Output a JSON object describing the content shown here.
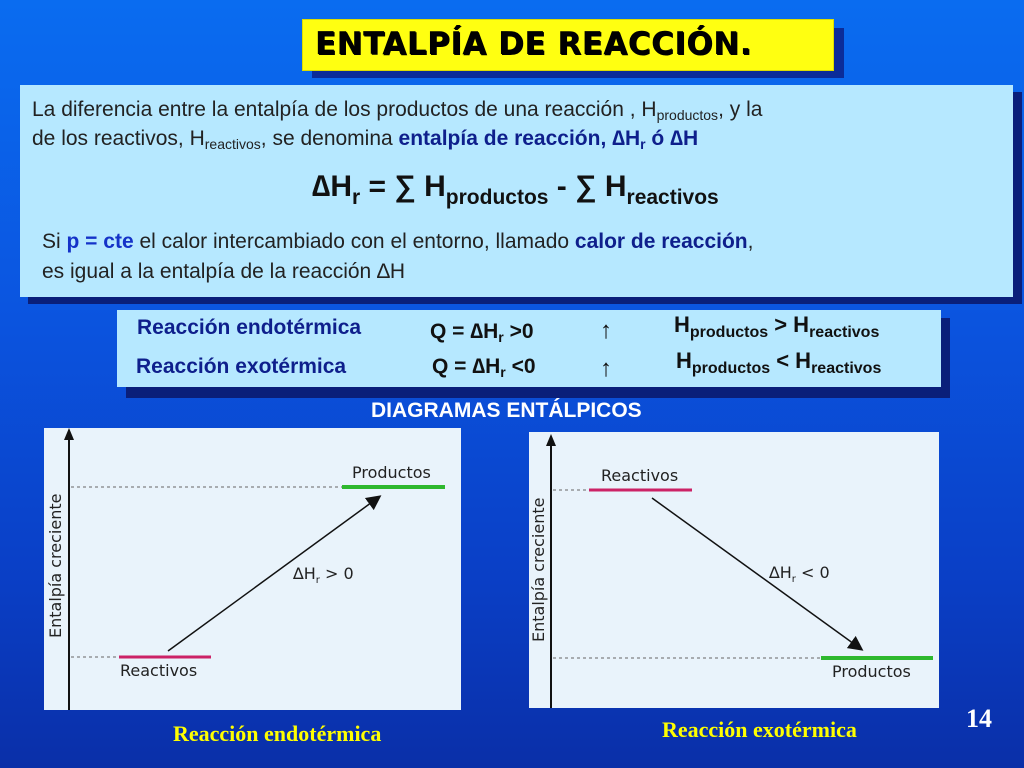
{
  "title": "ENTALPÍA DE REACCIÓN.",
  "definition": {
    "line1_a": "La diferencia entre la entalpía de los productos de una reacción , H",
    "line1_sub": "productos",
    "line1_b": ", y la",
    "line2_a": "de los reactivos, H",
    "line2_sub": "reactivos",
    "line2_b": ", se denomina ",
    "line2_bold": "entalpía de reacción, ∆H",
    "line2_bold_sub": "r",
    "line2_bold_end": " ó ∆H",
    "formula": {
      "lhs": "∆H",
      "lhs_sub": "r",
      "eq": " = ∑ H",
      "sub1": "productos",
      "mid": " - ∑ H",
      "sub2": "reactivos"
    },
    "line3_a": "Si ",
    "line3_p": "p = cte",
    "line3_b": " el calor intercambiado con el entorno, llamado ",
    "line3_bold": "calor de reacción",
    "line3_c": ",",
    "line4": "es igual a la entalpía de la reacción ∆H"
  },
  "reactions": [
    {
      "name": "Reacción endotérmica",
      "q": "Q = ∆H",
      "q_sub": "r",
      "q_end": " >0",
      "arrow": "↑",
      "h1": "H",
      "h1_sub": "productos",
      "rel": " > H",
      "h2_sub": "reactivos"
    },
    {
      "name": "Reacción exotérmica",
      "q": "Q = ∆H",
      "q_sub": "r",
      "q_end": " <0",
      "arrow": "↑",
      "h1": "H",
      "h1_sub": "productos",
      "rel": " < H",
      "h2_sub": "reactivos"
    }
  ],
  "diagrams_heading": "DIAGRAMAS ENTÁLPICOS",
  "diagram_left": {
    "axis_label": "Entalpía creciente",
    "top_label": "Productos",
    "bottom_label": "Reactivos",
    "delta": "∆H",
    "delta_sub": "r",
    "delta_end": " > 0",
    "caption": "Reacción endotérmica",
    "colors": {
      "top": "#2eb82e",
      "bottom": "#cc2266"
    }
  },
  "diagram_right": {
    "axis_label": "Entalpía creciente",
    "top_label": "Reactivos",
    "bottom_label": "Productos",
    "delta": "∆H",
    "delta_sub": "r",
    "delta_end": " < 0",
    "caption": "Reacción exotérmica",
    "colors": {
      "top": "#cc2266",
      "bottom": "#2eb82e"
    }
  },
  "page_number": "14"
}
